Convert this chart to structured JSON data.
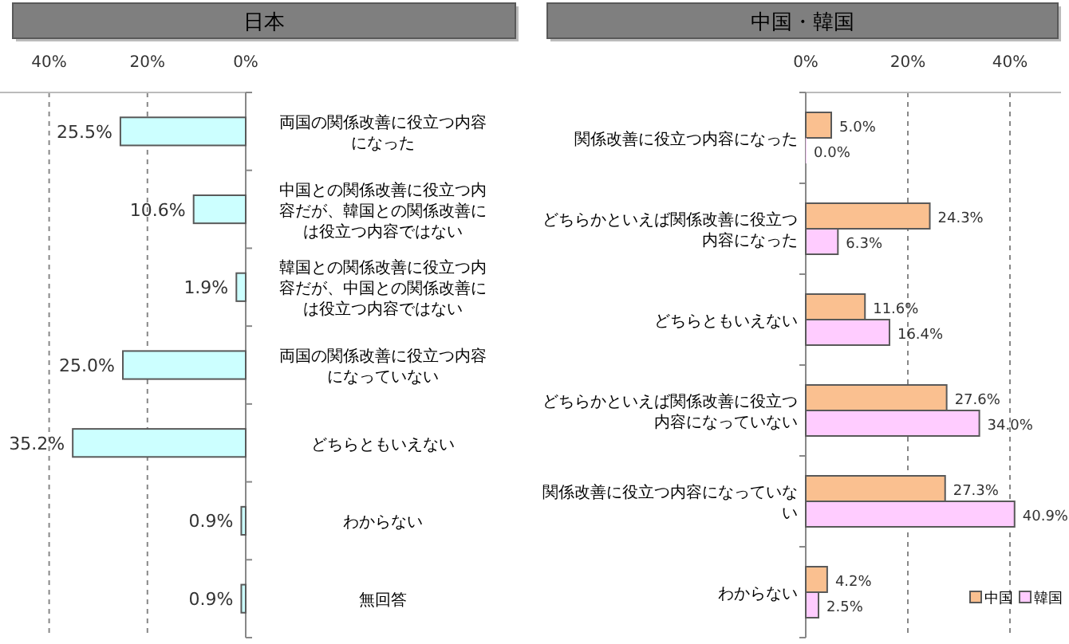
{
  "chart_data": [
    {
      "type": "bar",
      "orientation": "horizontal",
      "title": "日本",
      "categories": [
        "両国の関係改善に役立つ内容になった",
        "中国との関係改善に役立つ内容だが、韓国との関係改善には役立つ内容ではない",
        "韓国との関係改善に役立つ内容だが、中国との関係改善には役立つ内容ではない",
        "両国の関係改善に役立つ内容になっていない",
        "どちらともいえない",
        "わからない",
        "無回答"
      ],
      "values": [
        25.5,
        10.6,
        1.9,
        25.0,
        35.2,
        0.9,
        0.9
      ],
      "value_labels": [
        "25.5%",
        "10.6%",
        "1.9%",
        "25.0%",
        "35.2%",
        "0.9%",
        "0.9%"
      ],
      "color": "#ccffff",
      "xlim": [
        50,
        0
      ],
      "xticks": [
        {
          "value": 40,
          "label": "40%"
        },
        {
          "value": 20,
          "label": "20%"
        },
        {
          "value": 0,
          "label": "0%"
        }
      ],
      "grid": "x"
    },
    {
      "type": "bar",
      "orientation": "horizontal",
      "title": "中国・韓国",
      "categories": [
        "関係改善に役立つ内容になった",
        "どちらかといえば関係改善に役立つ内容になった",
        "どちらともいえない",
        "どちらかといえば関係改善に役立つ内容になっていない",
        "関係改善に役立つ内容になっていない",
        "わからない"
      ],
      "series": [
        {
          "name": "中国",
          "color": "#fac090",
          "values": [
            5.0,
            24.3,
            11.6,
            27.6,
            27.3,
            4.2
          ],
          "value_labels": [
            "5.0%",
            "24.3%",
            "11.6%",
            "27.6%",
            "27.3%",
            "4.2%"
          ]
        },
        {
          "name": "韓国",
          "color": "#ffccff",
          "values": [
            0.0,
            6.3,
            16.4,
            34.0,
            40.9,
            2.5
          ],
          "value_labels": [
            "0.0%",
            "6.3%",
            "16.4%",
            "34.0%",
            "40.9%",
            "2.5%"
          ]
        }
      ],
      "xlim": [
        0,
        50
      ],
      "xticks": [
        {
          "value": 0,
          "label": "0%"
        },
        {
          "value": 20,
          "label": "20%"
        },
        {
          "value": 40,
          "label": "40%"
        }
      ],
      "grid": "x",
      "legend": "bottom right"
    }
  ]
}
